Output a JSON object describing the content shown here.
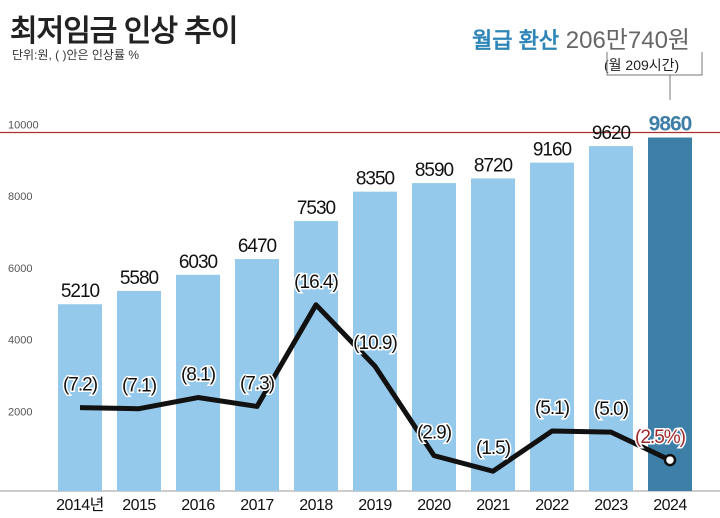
{
  "header": {
    "title": "최저임금 인상 추이",
    "subtitle": "단위:원, ( )안은 인상률 %",
    "monthly_label": "월급 환산",
    "monthly_value": "206만740원",
    "hours_note": "(월 209시간)"
  },
  "colors": {
    "bar": "#95c9ec",
    "bar_highlight": "#3e7fa8",
    "line": "#111111",
    "rate_text": "#111111",
    "rate_highlight": "#a1282b",
    "reference_line": "#b03030"
  },
  "chart_data": {
    "type": "bar",
    "categories": [
      "2014년",
      "2015",
      "2016",
      "2017",
      "2018",
      "2019",
      "2020",
      "2021",
      "2022",
      "2023",
      "2024"
    ],
    "values": [
      5210,
      5580,
      6030,
      6470,
      7530,
      8350,
      8590,
      8720,
      9160,
      9620,
      9860
    ],
    "value_labels": [
      "5210",
      "5580",
      "6030",
      "6470",
      "7530",
      "8350",
      "8590",
      "8720",
      "9160",
      "9620",
      "9860"
    ],
    "growth_rates": [
      7.2,
      7.1,
      8.1,
      7.3,
      16.4,
      10.9,
      2.9,
      1.5,
      5.1,
      5.0,
      2.5
    ],
    "growth_labels": [
      "(7.2)",
      "(7.1)",
      "(8.1)",
      "(7.3)",
      "(16.4)",
      "(10.9)",
      "(2.9)",
      "(1.5)",
      "(5.1)",
      "(5.0)",
      "(2.5%)"
    ],
    "ylim": [
      0,
      10500
    ],
    "yticks": [
      "2000",
      "4000",
      "6000",
      "8000",
      "10000"
    ],
    "rate_axis": [
      0,
      18
    ],
    "reference_value": 10000
  }
}
